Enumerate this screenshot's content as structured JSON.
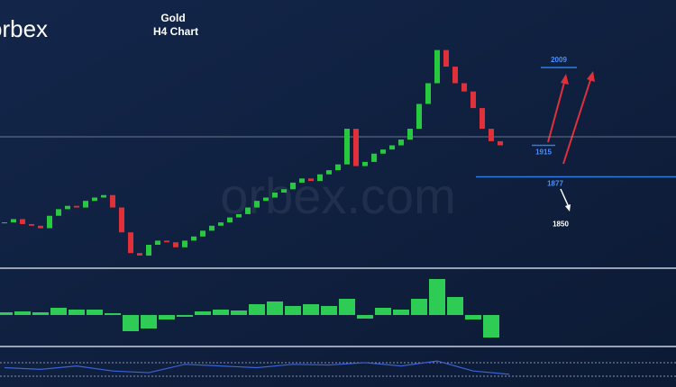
{
  "logo": "orbex",
  "watermark": "orbex.com",
  "chart_data": {
    "type": "candlestick",
    "title": "Gold",
    "subtitle": "H4 Chart",
    "closes": [
      1822,
      1826,
      1820,
      1818,
      1815,
      1830,
      1838,
      1842,
      1840,
      1848,
      1852,
      1855,
      1840,
      1810,
      1785,
      1782,
      1795,
      1800,
      1798,
      1792,
      1800,
      1805,
      1812,
      1818,
      1822,
      1828,
      1832,
      1840,
      1848,
      1852,
      1858,
      1862,
      1870,
      1875,
      1872,
      1880,
      1885,
      1892,
      1935,
      1890,
      1895,
      1905,
      1910,
      1915,
      1922,
      1935,
      1965,
      1990,
      2030,
      2010,
      1990,
      1980,
      1960,
      1935,
      1920,
      1915
    ],
    "up_color": "#27c93f",
    "down_color": "#e0303a",
    "ylim": [
      1770,
      2085
    ],
    "levels": [
      2009,
      1915,
      1877,
      1850
    ],
    "histogram": {
      "values": [
        3,
        4,
        3,
        8,
        6,
        6,
        2,
        -18,
        -15,
        -5,
        -2,
        4,
        6,
        5,
        12,
        15,
        10,
        12,
        10,
        18,
        -4,
        8,
        6,
        18,
        40,
        20,
        -5,
        -25
      ],
      "ylim": [
        -33,
        50
      ],
      "color": "#2ecc55"
    },
    "oscillator": {
      "values": [
        50,
        45,
        55,
        40,
        35,
        60,
        55,
        50,
        60,
        58,
        65,
        55,
        70,
        40,
        30
      ],
      "ylim": [
        0,
        100
      ],
      "color": "#3a63d8"
    }
  }
}
